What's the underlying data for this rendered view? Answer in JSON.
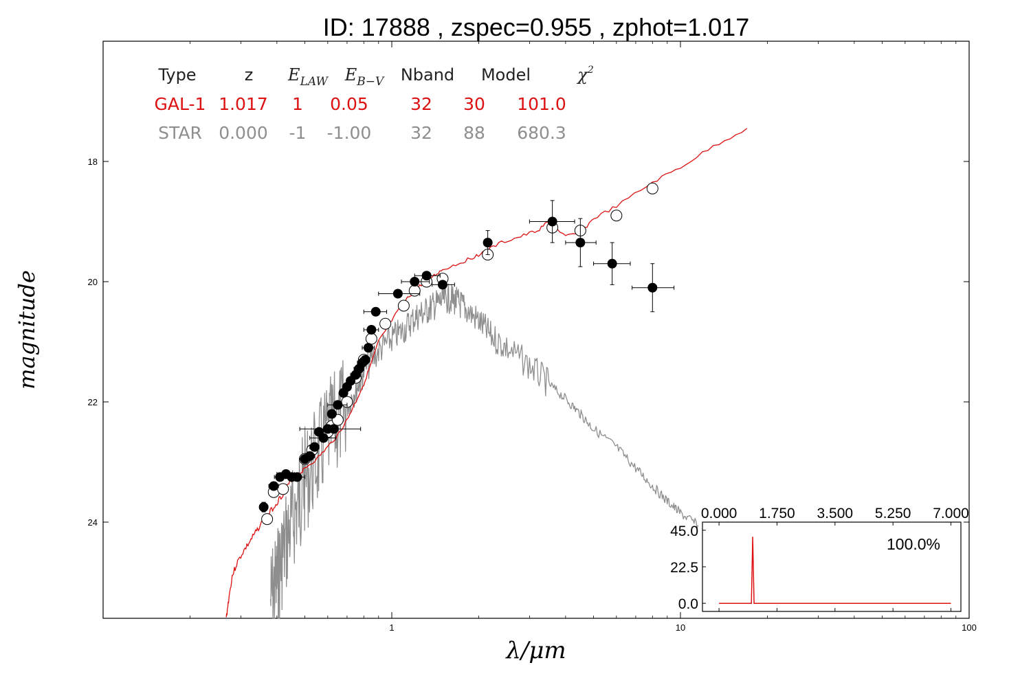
{
  "chart_data": {
    "type": "scatter",
    "title": "ID:  17888 , zspec=0.955 , zphot=1.017",
    "xlabel": "λ/μm",
    "ylabel": "magnitude",
    "x_scale": "log",
    "xlim": [
      0.1,
      100
    ],
    "ylim": [
      25.6,
      16.0
    ],
    "y_inverted": true,
    "x_tick_labels": [
      "1",
      "10",
      "100"
    ],
    "y_tick_labels": [
      "18",
      "20",
      "22",
      "24"
    ],
    "x_ticks": [
      1,
      10,
      100
    ],
    "y_ticks": [
      18,
      20,
      22,
      24
    ],
    "colors": {
      "galaxy": "#dd1111",
      "star": "#8e8e8e",
      "black": "#000000",
      "header": "#222222"
    },
    "fit_table": {
      "headers": [
        "Type",
        "z",
        "E_LAW",
        "E_B-V",
        "Nband",
        "Model",
        "χ²"
      ],
      "rows": [
        {
          "name": "galaxy",
          "cells": [
            "GAL-1",
            "1.017",
            "1",
            "0.05",
            "32",
            "30",
            "101.0"
          ]
        },
        {
          "name": "star",
          "cells": [
            "STAR",
            "0.000",
            "-1",
            "-1.00",
            "32",
            "88",
            "680.3"
          ]
        }
      ]
    },
    "galaxy_sed": {
      "name": "GAL-1",
      "x": [
        0.267,
        0.272,
        0.28,
        0.29,
        0.305,
        0.32,
        0.335,
        0.35,
        0.37,
        0.39,
        0.41,
        0.43,
        0.45,
        0.48,
        0.5,
        0.55,
        0.6,
        0.65,
        0.7,
        0.75,
        0.8,
        0.85,
        0.9,
        1.0,
        1.1,
        1.2,
        1.3,
        1.4,
        1.5,
        1.7,
        1.9,
        2.1,
        2.4,
        2.8,
        3.2,
        3.5,
        4.0,
        4.5,
        5.0,
        6.0,
        8.0,
        10.0,
        13.0,
        17.0
      ],
      "y": [
        25.6,
        25.3,
        24.9,
        24.7,
        24.5,
        24.35,
        24.2,
        24.05,
        23.9,
        23.75,
        23.6,
        23.45,
        23.3,
        23.2,
        23.1,
        22.95,
        22.75,
        22.55,
        22.3,
        22.0,
        21.7,
        21.35,
        21.0,
        20.65,
        20.35,
        20.15,
        20.0,
        19.9,
        19.8,
        19.7,
        19.6,
        19.5,
        19.35,
        19.25,
        19.15,
        19.0,
        19.25,
        19.2,
        18.95,
        18.75,
        18.35,
        18.1,
        17.75,
        17.45
      ]
    },
    "star_sed": {
      "name": "STAR",
      "x": [
        0.38,
        0.4,
        0.42,
        0.45,
        0.48,
        0.5,
        0.55,
        0.6,
        0.65,
        0.7,
        0.75,
        0.8,
        0.9,
        1.0,
        1.1,
        1.2,
        1.3,
        1.4,
        1.5,
        1.6,
        1.7,
        1.8,
        2.0,
        2.2,
        2.5,
        3.0,
        3.5,
        4.0,
        4.5,
        5.0,
        6.0,
        7.0,
        8.0,
        9.0,
        10.0,
        11.5
      ],
      "y": [
        25.3,
        25.0,
        24.5,
        24.0,
        23.6,
        23.3,
        22.95,
        22.55,
        22.3,
        22.05,
        21.8,
        21.5,
        21.15,
        20.95,
        20.8,
        20.6,
        20.5,
        20.4,
        20.3,
        20.28,
        20.35,
        20.45,
        20.65,
        20.9,
        21.1,
        21.4,
        21.7,
        21.95,
        22.2,
        22.45,
        22.75,
        23.1,
        23.4,
        23.65,
        23.85,
        24.05
      ]
    },
    "observed_points": {
      "x": [
        0.36,
        0.39,
        0.41,
        0.43,
        0.45,
        0.47,
        0.5,
        0.52,
        0.54,
        0.56,
        0.58,
        0.6,
        0.62,
        0.63,
        0.65,
        0.68,
        0.7,
        0.72,
        0.75,
        0.77,
        0.79,
        0.81,
        0.83,
        0.85,
        0.88,
        1.05,
        1.2,
        1.32,
        1.5,
        2.15,
        3.6,
        4.5,
        5.8,
        8.0
      ],
      "y": [
        23.75,
        23.4,
        23.25,
        23.2,
        23.25,
        23.25,
        22.95,
        22.9,
        22.75,
        22.5,
        22.6,
        22.45,
        22.2,
        22.45,
        22.05,
        21.85,
        21.75,
        21.65,
        21.55,
        21.45,
        21.35,
        21.3,
        21.1,
        20.8,
        20.5,
        20.2,
        20.0,
        19.9,
        20.05,
        19.35,
        19.0,
        19.35,
        19.7,
        20.1
      ],
      "xerr_lo": [
        0.012,
        0.015,
        0.018,
        0.03,
        0.02,
        0.03,
        0.02,
        0.02,
        0.02,
        0.02,
        0.06,
        0.02,
        0.02,
        0.15,
        0.05,
        0.02,
        0.02,
        0.02,
        0.03,
        0.03,
        0.03,
        0.03,
        0.04,
        0.05,
        0.08,
        0.15,
        0.12,
        0.12,
        0.12,
        0.05,
        0.6,
        0.5,
        0.8,
        1.2
      ],
      "xerr_hi": [
        0.012,
        0.015,
        0.018,
        0.03,
        0.02,
        0.03,
        0.02,
        0.02,
        0.02,
        0.02,
        0.06,
        0.02,
        0.02,
        0.15,
        0.05,
        0.02,
        0.02,
        0.02,
        0.03,
        0.03,
        0.03,
        0.03,
        0.04,
        0.05,
        0.08,
        0.2,
        0.15,
        0.15,
        0.15,
        0.05,
        0.7,
        0.6,
        0.9,
        1.5
      ],
      "yerr": [
        0.08,
        0.05,
        0.05,
        0.05,
        0.05,
        0.05,
        0.04,
        0.04,
        0.04,
        0.04,
        0.05,
        0.04,
        0.04,
        0.06,
        0.04,
        0.04,
        0.04,
        0.04,
        0.04,
        0.04,
        0.04,
        0.04,
        0.04,
        0.04,
        0.04,
        0.04,
        0.04,
        0.04,
        0.05,
        0.2,
        0.35,
        0.4,
        0.35,
        0.4
      ]
    },
    "model_points": {
      "x": [
        0.37,
        0.39,
        0.42,
        0.5,
        0.53,
        0.6,
        0.62,
        0.65,
        0.7,
        0.75,
        0.8,
        0.85,
        0.95,
        1.1,
        1.2,
        1.32,
        1.5,
        2.15,
        3.6,
        4.5,
        6.0,
        8.0
      ],
      "y": [
        23.95,
        23.5,
        23.45,
        22.95,
        22.8,
        22.5,
        22.4,
        22.3,
        22.0,
        21.6,
        21.3,
        20.95,
        20.7,
        20.4,
        20.15,
        20.0,
        19.95,
        19.55,
        19.1,
        19.15,
        18.9,
        18.45
      ]
    },
    "pdz_inset": {
      "x_ticks": [
        0.0,
        1.75,
        3.5,
        5.25,
        7.0
      ],
      "x_tick_labels": [
        "0.000",
        "1.750",
        "3.500",
        "5.250",
        "7.000"
      ],
      "y_ticks": [
        0.0,
        22.5,
        45.0
      ],
      "y_tick_labels": [
        "0.0",
        "22.5",
        "45.0"
      ],
      "xlim": [
        -0.5,
        7.3
      ],
      "ylim": [
        -5,
        50
      ],
      "peak_z": 1.017,
      "peak_height": 41,
      "annotation": "100.0%"
    }
  }
}
